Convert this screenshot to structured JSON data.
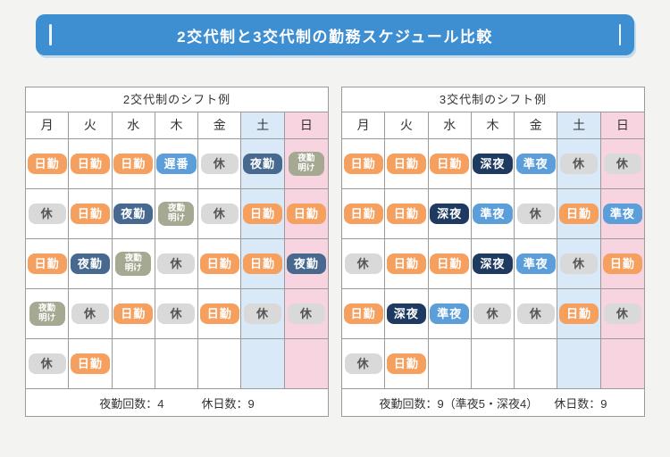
{
  "banner": {
    "title": "2交代制と3交代制の勤務スケジュール比較"
  },
  "colors": {
    "accent": "#3e8ed2",
    "page_bg": "#f3f3f1",
    "saturday_bg": "#d9e9f7",
    "sunday_bg": "#f8d4e0",
    "grid_border": "#9a9a9a"
  },
  "shift_types": {
    "day": {
      "label": "日勤",
      "bg": "#f5a05f",
      "fg": "#ffffff"
    },
    "late": {
      "label": "遅番",
      "bg": "#5b9ed9",
      "fg": "#ffffff"
    },
    "off": {
      "label": "休",
      "bg": "#d9d9d9",
      "fg": "#555555"
    },
    "night": {
      "label": "夜勤",
      "bg": "#47688f",
      "fg": "#ffffff"
    },
    "night_after": {
      "label": "夜勤明け",
      "lines": [
        "夜勤",
        "明け"
      ],
      "bg": "#a6a992",
      "fg": "#ffffff"
    },
    "midnight": {
      "label": "深夜",
      "bg": "#1f3a60",
      "fg": "#ffffff"
    },
    "evening": {
      "label": "準夜",
      "bg": "#5b9ed9",
      "fg": "#ffffff"
    }
  },
  "tables": [
    {
      "title": "2交代制のシフト例",
      "days": [
        "月",
        "火",
        "水",
        "木",
        "金",
        "土",
        "日"
      ],
      "rows": [
        [
          "day",
          "day",
          "day",
          "late",
          "off",
          "night",
          "night_after"
        ],
        [
          "off",
          "day",
          "night",
          "night_after",
          "off",
          "day",
          "day"
        ],
        [
          "day",
          "night",
          "night_after",
          "off",
          "day",
          "day",
          "night"
        ],
        [
          "night_after",
          "off",
          "day",
          "off",
          "day",
          "off",
          "off"
        ],
        [
          "off",
          "day",
          null,
          null,
          null,
          null,
          null
        ]
      ],
      "footer": [
        "夜勤回数：4",
        "休日数：9"
      ]
    },
    {
      "title": "3交代制のシフト例",
      "days": [
        "月",
        "火",
        "水",
        "木",
        "金",
        "土",
        "日"
      ],
      "rows": [
        [
          "day",
          "day",
          "day",
          "midnight",
          "evening",
          "off",
          "off"
        ],
        [
          "day",
          "day",
          "midnight",
          "evening",
          "off",
          "day",
          "evening"
        ],
        [
          "off",
          "day",
          "day",
          "midnight",
          "evening",
          "off",
          "day"
        ],
        [
          "day",
          "midnight",
          "evening",
          "off",
          "off",
          "day",
          "off"
        ],
        [
          "off",
          "day",
          null,
          null,
          null,
          null,
          null
        ]
      ],
      "footer": [
        "夜勤回数：9（準夜5・深夜4）",
        "休日数：9"
      ]
    }
  ]
}
